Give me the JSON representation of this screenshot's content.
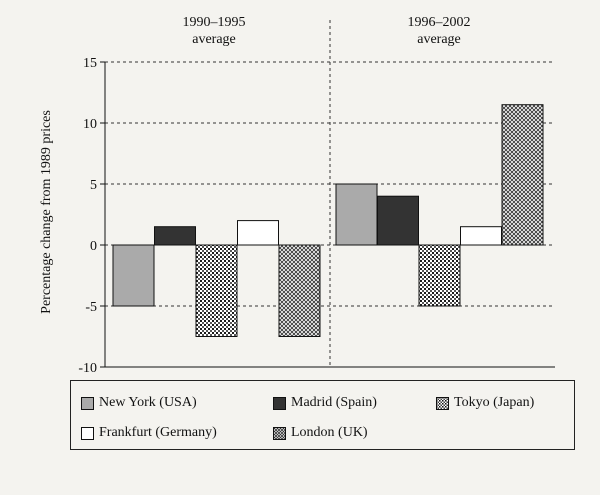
{
  "chart_data": {
    "type": "bar",
    "ylabel": "Percentage change from 1989 prices",
    "ylim": [
      -10,
      15
    ],
    "yticks": [
      15,
      10,
      5,
      0,
      -5,
      -10
    ],
    "grid": "horizontal dashed",
    "categories": [
      "1990–1995 average",
      "1996–2002 average"
    ],
    "period_labels": [
      {
        "line1": "1990–1995",
        "line2": "average"
      },
      {
        "line1": "1996–2002",
        "line2": "average"
      }
    ],
    "series": [
      {
        "name": "New York (USA)",
        "values": [
          -5,
          5
        ],
        "color": "#aaaaaa",
        "pattern": "solid-light"
      },
      {
        "name": "Madrid (Spain)",
        "values": [
          1.5,
          4
        ],
        "color": "#333333",
        "pattern": "solid-dark"
      },
      {
        "name": "Tokyo (Japan)",
        "values": [
          -7.5,
          -5
        ],
        "color": "#555555",
        "pattern": "grid"
      },
      {
        "name": "Frankfurt (Germany)",
        "values": [
          2,
          1.5
        ],
        "color": "#ffffff",
        "pattern": "white"
      },
      {
        "name": "London (UK)",
        "values": [
          -7.5,
          11.5
        ],
        "color": "#888888",
        "pattern": "crosshatch"
      }
    ],
    "legend_position": "bottom"
  }
}
